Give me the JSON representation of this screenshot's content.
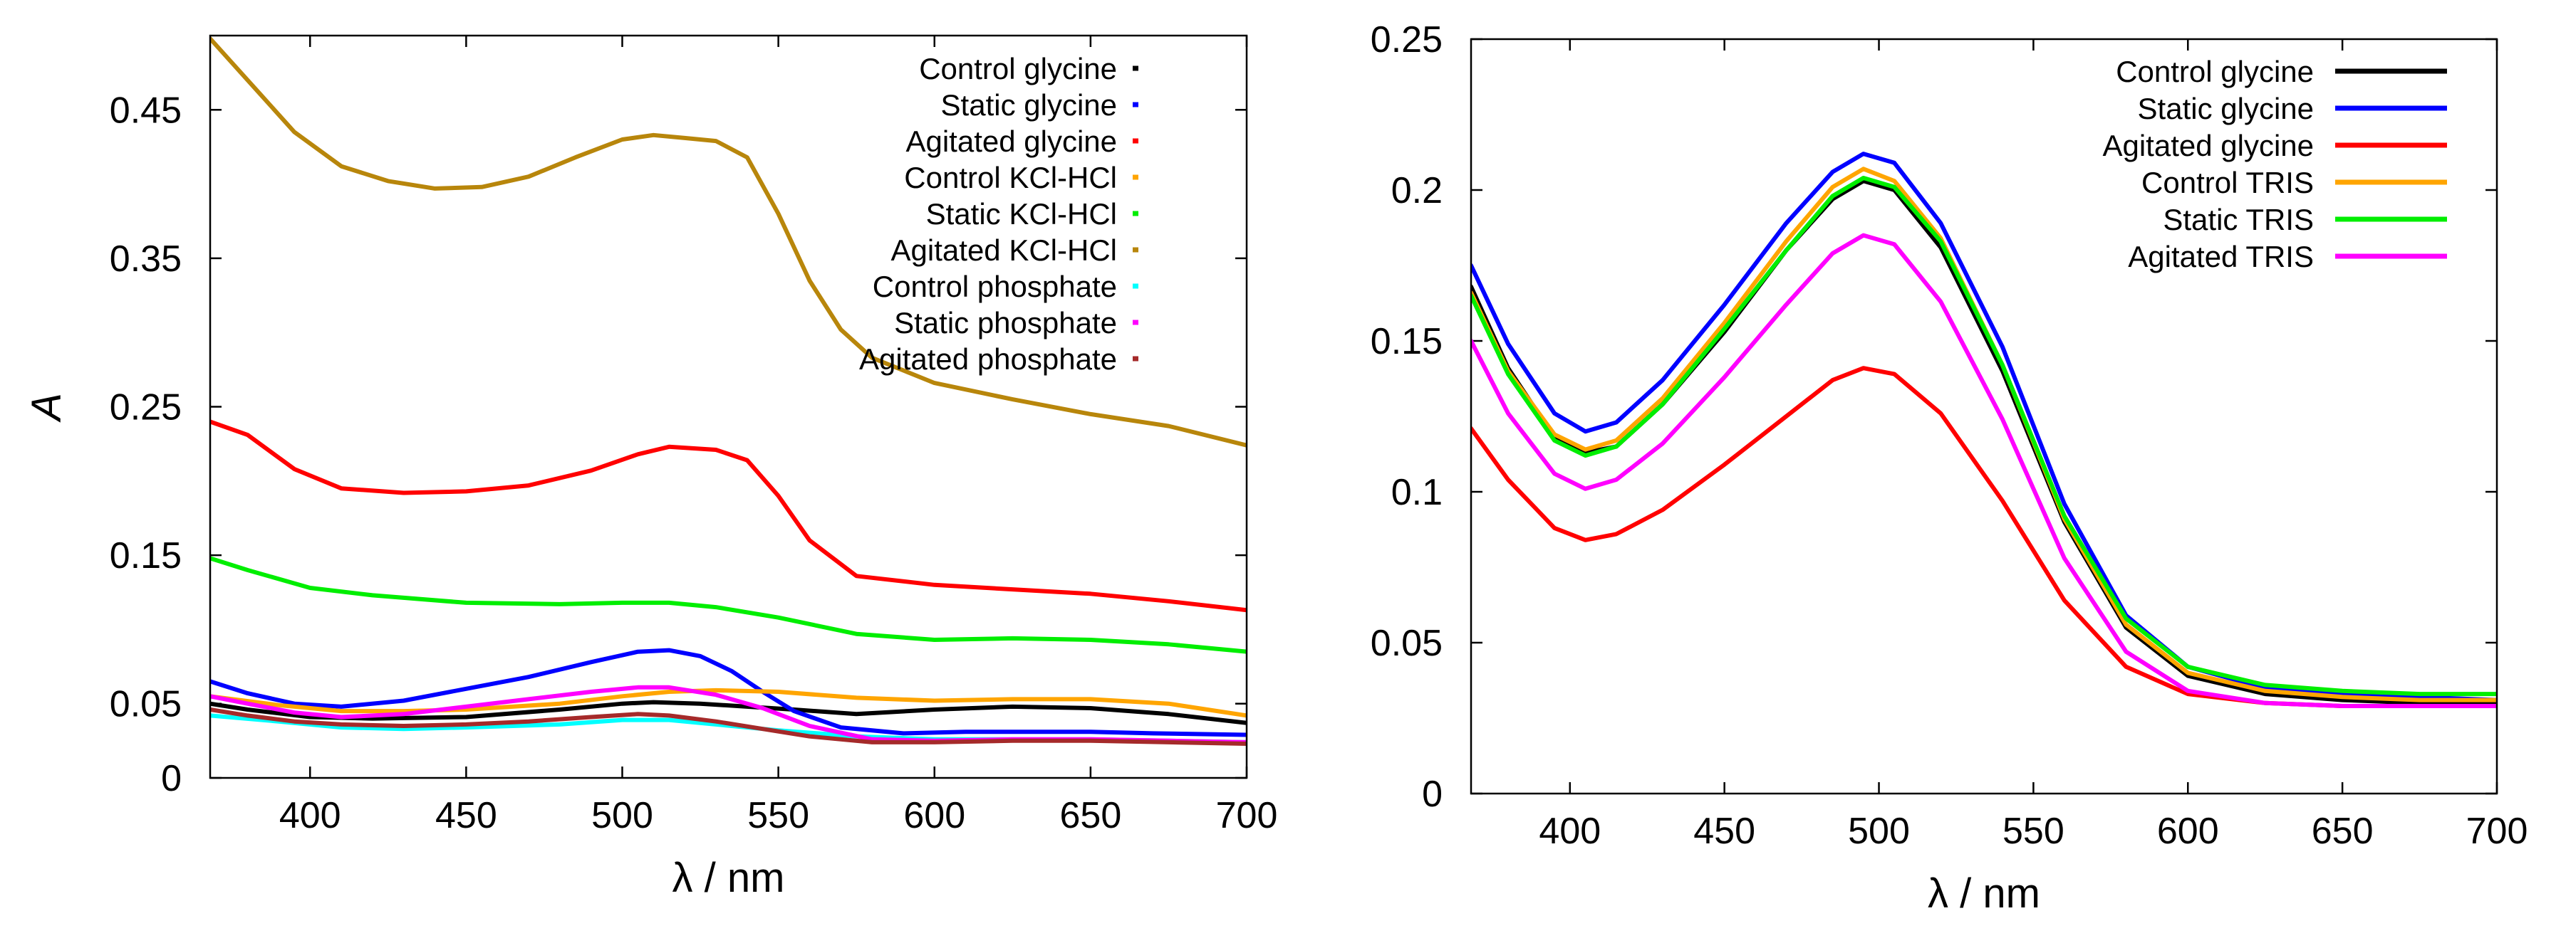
{
  "chart_data": [
    {
      "type": "line",
      "title": "",
      "xlabel": "λ / nm",
      "ylabel": "A",
      "xlim": [
        368,
        700
      ],
      "ylim": [
        0,
        0.5
      ],
      "x_ticks": [
        400,
        450,
        500,
        550,
        600,
        650,
        700
      ],
      "y_ticks": [
        0,
        0.05,
        0.15,
        0.25,
        0.35,
        0.45
      ],
      "x_tick_labels": [
        "400",
        "450",
        "500",
        "550",
        "600",
        "650",
        "700"
      ],
      "y_tick_labels": [
        "0",
        "0.05",
        "0.15",
        "0.25",
        "0.35",
        "0.45"
      ],
      "grid": false,
      "legend_position": "top-right",
      "series": [
        {
          "name": "Control glycine",
          "color": "#000000",
          "x": [
            368,
            380,
            400,
            420,
            450,
            480,
            500,
            510,
            525,
            540,
            555,
            575,
            600,
            625,
            650,
            675,
            700
          ],
          "y": [
            0.05,
            0.046,
            0.041,
            0.04,
            0.041,
            0.046,
            0.05,
            0.051,
            0.05,
            0.048,
            0.046,
            0.043,
            0.046,
            0.048,
            0.047,
            0.043,
            0.037
          ]
        },
        {
          "name": "Static glycine",
          "color": "#0000ff",
          "x": [
            368,
            380,
            395,
            410,
            430,
            450,
            470,
            490,
            505,
            515,
            525,
            535,
            545,
            555,
            570,
            590,
            610,
            630,
            650,
            670,
            700
          ],
          "y": [
            0.065,
            0.057,
            0.05,
            0.048,
            0.052,
            0.06,
            0.068,
            0.078,
            0.085,
            0.086,
            0.082,
            0.072,
            0.058,
            0.045,
            0.034,
            0.03,
            0.031,
            0.031,
            0.031,
            0.03,
            0.029
          ]
        },
        {
          "name": "Agitated glycine",
          "color": "#ff0000",
          "x": [
            368,
            380,
            395,
            410,
            430,
            450,
            470,
            490,
            505,
            515,
            530,
            540,
            550,
            560,
            575,
            600,
            625,
            650,
            675,
            700
          ],
          "y": [
            0.24,
            0.231,
            0.208,
            0.195,
            0.192,
            0.193,
            0.197,
            0.207,
            0.218,
            0.223,
            0.221,
            0.214,
            0.19,
            0.16,
            0.136,
            0.13,
            0.127,
            0.124,
            0.119,
            0.113
          ]
        },
        {
          "name": "Control KCl-HCl",
          "color": "#ffa500",
          "x": [
            368,
            390,
            410,
            430,
            450,
            480,
            500,
            515,
            530,
            550,
            575,
            600,
            625,
            650,
            675,
            700
          ],
          "y": [
            0.055,
            0.049,
            0.045,
            0.045,
            0.046,
            0.05,
            0.055,
            0.058,
            0.059,
            0.058,
            0.054,
            0.052,
            0.053,
            0.053,
            0.05,
            0.042
          ]
        },
        {
          "name": "Static KCl-HCl",
          "color": "#00ee00",
          "x": [
            368,
            380,
            400,
            420,
            450,
            480,
            500,
            515,
            530,
            550,
            575,
            600,
            625,
            650,
            675,
            700
          ],
          "y": [
            0.148,
            0.14,
            0.128,
            0.123,
            0.118,
            0.117,
            0.118,
            0.118,
            0.115,
            0.108,
            0.097,
            0.093,
            0.094,
            0.093,
            0.09,
            0.085
          ]
        },
        {
          "name": "Agitated KCl-HCl",
          "color": "#b8860b",
          "x": [
            368,
            380,
            395,
            410,
            425,
            440,
            455,
            470,
            485,
            500,
            510,
            520,
            530,
            540,
            550,
            560,
            570,
            580,
            600,
            625,
            650,
            675,
            700
          ],
          "y": [
            0.498,
            0.47,
            0.435,
            0.412,
            0.402,
            0.397,
            0.398,
            0.405,
            0.418,
            0.43,
            0.433,
            0.431,
            0.429,
            0.418,
            0.38,
            0.335,
            0.302,
            0.283,
            0.266,
            0.255,
            0.245,
            0.237,
            0.224
          ]
        },
        {
          "name": "Control phosphate",
          "color": "#00ffff",
          "x": [
            368,
            390,
            410,
            430,
            450,
            480,
            500,
            515,
            530,
            550,
            575,
            600,
            625,
            650,
            675,
            700
          ],
          "y": [
            0.042,
            0.038,
            0.034,
            0.033,
            0.034,
            0.036,
            0.039,
            0.039,
            0.036,
            0.032,
            0.028,
            0.026,
            0.026,
            0.026,
            0.025,
            0.024
          ]
        },
        {
          "name": "Static phosphate",
          "color": "#ff00ff",
          "x": [
            368,
            380,
            395,
            410,
            430,
            450,
            470,
            490,
            505,
            515,
            530,
            545,
            560,
            580,
            600,
            625,
            650,
            675,
            700
          ],
          "y": [
            0.055,
            0.05,
            0.044,
            0.041,
            0.043,
            0.048,
            0.053,
            0.058,
            0.061,
            0.061,
            0.056,
            0.047,
            0.035,
            0.026,
            0.025,
            0.026,
            0.026,
            0.025,
            0.024
          ]
        },
        {
          "name": "Agitated phosphate",
          "color": "#a52a2a",
          "x": [
            368,
            380,
            395,
            410,
            430,
            450,
            470,
            490,
            505,
            515,
            530,
            545,
            560,
            580,
            600,
            625,
            650,
            675,
            700
          ],
          "y": [
            0.046,
            0.042,
            0.038,
            0.036,
            0.035,
            0.036,
            0.038,
            0.041,
            0.043,
            0.042,
            0.038,
            0.033,
            0.028,
            0.024,
            0.024,
            0.025,
            0.025,
            0.024,
            0.023
          ]
        }
      ]
    },
    {
      "type": "line",
      "title": "",
      "xlabel": "λ / nm",
      "ylabel": "",
      "xlim": [
        368,
        700
      ],
      "ylim": [
        0,
        0.25
      ],
      "x_ticks": [
        400,
        450,
        500,
        550,
        600,
        650,
        700
      ],
      "y_ticks": [
        0,
        0.05,
        0.1,
        0.15,
        0.2,
        0.25
      ],
      "x_tick_labels": [
        "400",
        "450",
        "500",
        "550",
        "600",
        "650",
        "700"
      ],
      "y_tick_labels": [
        "0",
        "0.05",
        "0.1",
        "0.15",
        "0.2",
        "0.25"
      ],
      "grid": false,
      "legend_position": "top-right",
      "series": [
        {
          "name": "Control glycine",
          "color": "#000000",
          "x": [
            368,
            380,
            395,
            405,
            415,
            430,
            450,
            470,
            485,
            495,
            505,
            520,
            540,
            560,
            580,
            600,
            625,
            650,
            675,
            700
          ],
          "y": [
            0.168,
            0.141,
            0.118,
            0.113,
            0.115,
            0.129,
            0.153,
            0.18,
            0.197,
            0.203,
            0.2,
            0.181,
            0.14,
            0.09,
            0.055,
            0.039,
            0.033,
            0.031,
            0.03,
            0.03
          ]
        },
        {
          "name": "Static glycine",
          "color": "#0000ff",
          "x": [
            368,
            380,
            395,
            405,
            415,
            430,
            450,
            470,
            485,
            495,
            505,
            520,
            540,
            560,
            580,
            600,
            625,
            650,
            675,
            700
          ],
          "y": [
            0.175,
            0.149,
            0.126,
            0.12,
            0.123,
            0.137,
            0.162,
            0.189,
            0.206,
            0.212,
            0.209,
            0.189,
            0.148,
            0.096,
            0.059,
            0.042,
            0.035,
            0.033,
            0.032,
            0.031
          ]
        },
        {
          "name": "Agitated glycine",
          "color": "#ff0000",
          "x": [
            368,
            380,
            395,
            405,
            415,
            430,
            450,
            470,
            485,
            495,
            505,
            520,
            540,
            560,
            580,
            600,
            625,
            650,
            675,
            700
          ],
          "y": [
            0.121,
            0.104,
            0.088,
            0.084,
            0.086,
            0.094,
            0.109,
            0.125,
            0.137,
            0.141,
            0.139,
            0.126,
            0.097,
            0.064,
            0.042,
            0.033,
            0.03,
            0.029,
            0.029,
            0.029
          ]
        },
        {
          "name": "Control TRIS",
          "color": "#ffa500",
          "x": [
            368,
            380,
            395,
            405,
            415,
            430,
            450,
            470,
            485,
            495,
            505,
            520,
            540,
            560,
            580,
            600,
            625,
            650,
            675,
            700
          ],
          "y": [
            0.166,
            0.14,
            0.119,
            0.114,
            0.117,
            0.131,
            0.156,
            0.183,
            0.201,
            0.207,
            0.203,
            0.184,
            0.142,
            0.091,
            0.056,
            0.04,
            0.034,
            0.032,
            0.031,
            0.031
          ]
        },
        {
          "name": "Static TRIS",
          "color": "#00ee00",
          "x": [
            368,
            380,
            395,
            405,
            415,
            430,
            450,
            470,
            485,
            495,
            505,
            520,
            540,
            560,
            580,
            600,
            625,
            650,
            675,
            700
          ],
          "y": [
            0.165,
            0.139,
            0.117,
            0.112,
            0.115,
            0.129,
            0.154,
            0.18,
            0.198,
            0.204,
            0.201,
            0.183,
            0.142,
            0.092,
            0.058,
            0.042,
            0.036,
            0.034,
            0.033,
            0.033
          ]
        },
        {
          "name": "Agitated TRIS",
          "color": "#ff00ff",
          "x": [
            368,
            380,
            395,
            405,
            415,
            430,
            450,
            470,
            485,
            495,
            505,
            520,
            540,
            560,
            580,
            600,
            625,
            650,
            675,
            700
          ],
          "y": [
            0.15,
            0.126,
            0.106,
            0.101,
            0.104,
            0.116,
            0.138,
            0.162,
            0.179,
            0.185,
            0.182,
            0.163,
            0.124,
            0.078,
            0.047,
            0.034,
            0.03,
            0.029,
            0.029,
            0.029
          ]
        }
      ]
    }
  ]
}
